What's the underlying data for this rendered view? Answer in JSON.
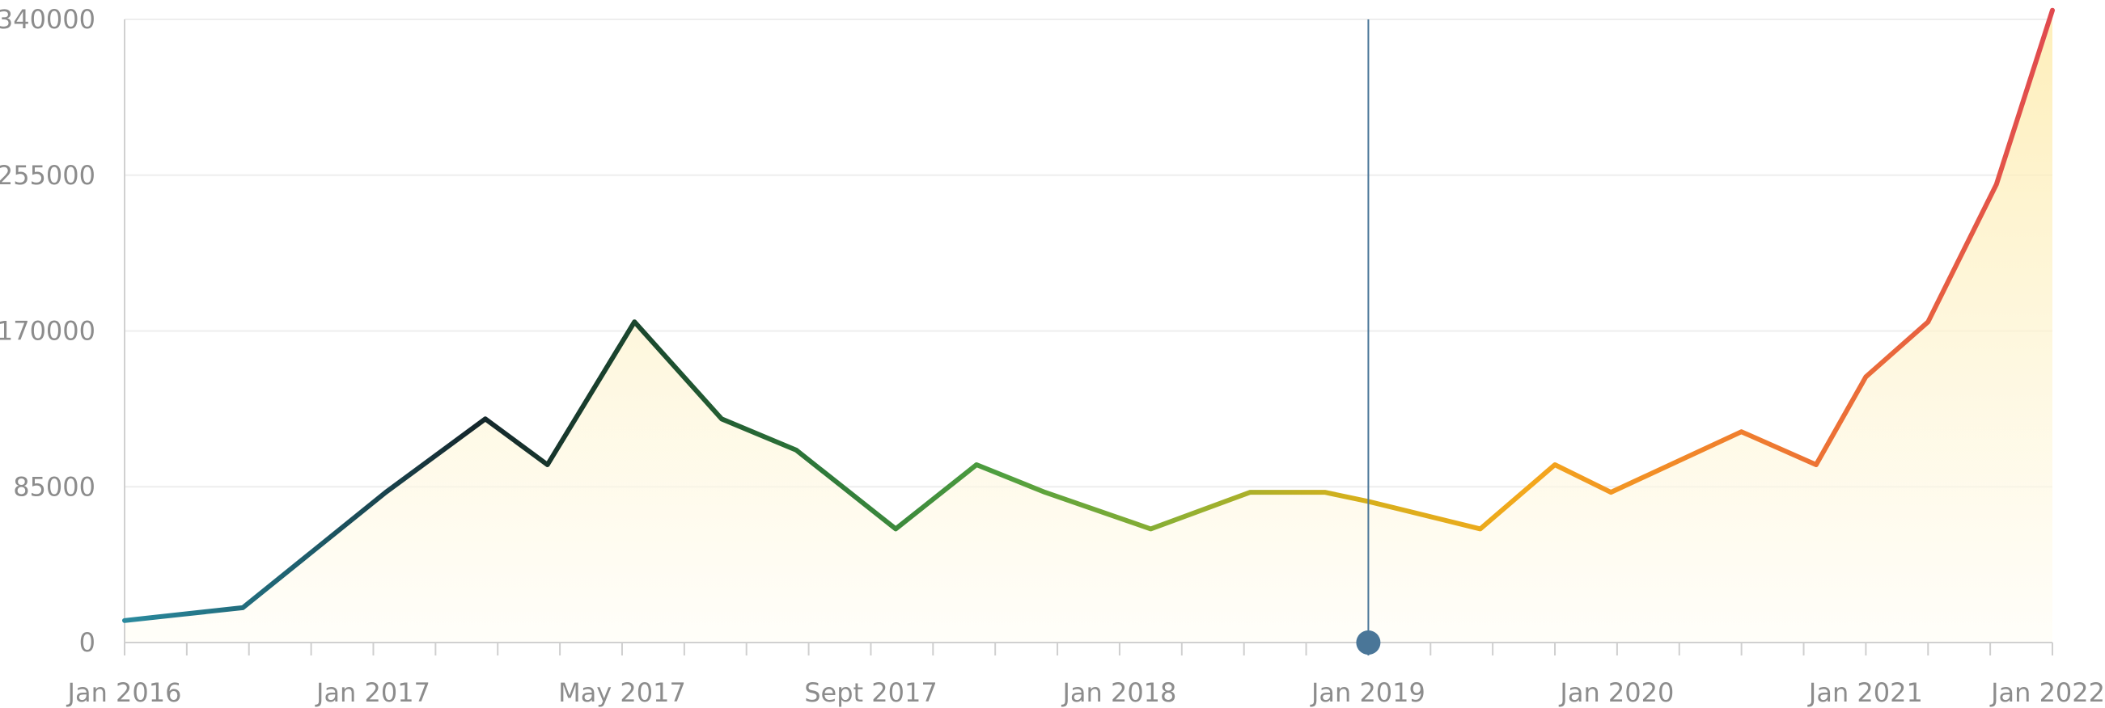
{
  "chart_data": {
    "type": "area",
    "title": "",
    "xlabel": "",
    "ylabel": "",
    "ylim": [
      0,
      340000
    ],
    "y_ticks": [
      "0",
      "85000",
      "170000",
      "255000",
      "340000"
    ],
    "x_ticks": [
      {
        "label": "Jan 2016",
        "index": 0
      },
      {
        "label": "Jan 2017",
        "index": 4
      },
      {
        "label": "May 2017",
        "index": 8
      },
      {
        "label": "Sept 2017",
        "index": 12
      },
      {
        "label": "Jan 2018",
        "index": 16
      },
      {
        "label": "Jan 2019",
        "index": 20
      },
      {
        "label": "Jan 2020",
        "index": 24
      },
      {
        "label": "Jan 2021",
        "index": 28
      },
      {
        "label": "Jan 2022",
        "index": 31
      }
    ],
    "tick_count": 32,
    "points": [
      {
        "i": 0,
        "value": 12000
      },
      {
        "i": 1.9,
        "value": 19000
      },
      {
        "i": 4.2,
        "value": 82000
      },
      {
        "i": 5.8,
        "value": 122000
      },
      {
        "i": 6.8,
        "value": 97000
      },
      {
        "i": 8.2,
        "value": 175000
      },
      {
        "i": 9.6,
        "value": 122000
      },
      {
        "i": 10.8,
        "value": 105000
      },
      {
        "i": 12.4,
        "value": 62000
      },
      {
        "i": 13.7,
        "value": 97000
      },
      {
        "i": 14.8,
        "value": 82000
      },
      {
        "i": 16.5,
        "value": 62000
      },
      {
        "i": 18.1,
        "value": 82000
      },
      {
        "i": 19.3,
        "value": 82000
      },
      {
        "i": 20.0,
        "value": 77000
      },
      {
        "i": 21.8,
        "value": 62000
      },
      {
        "i": 23.0,
        "value": 97000
      },
      {
        "i": 23.9,
        "value": 82000
      },
      {
        "i": 26.0,
        "value": 115000
      },
      {
        "i": 27.2,
        "value": 97000
      },
      {
        "i": 28.0,
        "value": 145000
      },
      {
        "i": 29.0,
        "value": 175000
      },
      {
        "i": 30.1,
        "value": 250000
      },
      {
        "i": 31.0,
        "value": 345000
      }
    ],
    "cursor": {
      "index": 20,
      "value": 0
    },
    "grid": true,
    "colors": {
      "gradient": [
        "#2a8a9e",
        "#1e5f6e",
        "#14262b",
        "#1b4a2e",
        "#2f7a3a",
        "#4f9f3f",
        "#8fb033",
        "#d4b01c",
        "#f3a81c",
        "#f1842a",
        "#ea6a3a",
        "#e04a4f"
      ],
      "area_top": "#fde9a3",
      "area_bottom": "#fffdf5",
      "cursor": "#4a7698"
    }
  }
}
